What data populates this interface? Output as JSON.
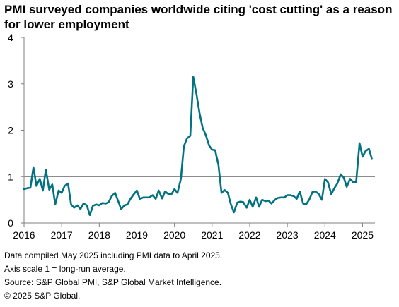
{
  "title": "PMI surveyed companies worldwide citing 'cost cutting' as a reason for lower employment",
  "notes": [
    "Data compiled May 2025 including PMI data to April 2025.",
    "Axis scale 1 = long-run average.",
    "Source: S&P Global PMI, S&P Global Market Intelligence.",
    "© 2025 S&P Global."
  ],
  "colors": {
    "line": "#007281",
    "reference": "#8c8c8c",
    "grid": "#d9d9d9",
    "axis": "#7f7f7f"
  },
  "chart_data": {
    "type": "line",
    "title": "PMI surveyed companies worldwide citing 'cost cutting' as a reason for lower employment",
    "xlabel": "",
    "ylabel": "",
    "ylim": [
      0,
      4
    ],
    "yticks": [
      0,
      1,
      2,
      3,
      4
    ],
    "xlim": [
      2016,
      2025.33
    ],
    "xticks": [
      2016,
      2017,
      2018,
      2019,
      2020,
      2021,
      2022,
      2023,
      2024,
      2025
    ],
    "reference_line": 1,
    "grid": false,
    "series": [
      {
        "x": [
          2016.0,
          2016.08,
          2016.17,
          2016.25,
          2016.33,
          2016.42,
          2016.5,
          2016.58,
          2016.67,
          2016.75,
          2016.83,
          2016.92,
          2017.0,
          2017.08,
          2017.17,
          2017.25,
          2017.33,
          2017.42,
          2017.5,
          2017.58,
          2017.67,
          2017.75,
          2017.83,
          2017.92,
          2018.0,
          2018.08,
          2018.17,
          2018.25,
          2018.33,
          2018.42,
          2018.5,
          2018.58,
          2018.67,
          2018.75,
          2018.83,
          2018.92,
          2019.0,
          2019.08,
          2019.17,
          2019.25,
          2019.33,
          2019.42,
          2019.5,
          2019.58,
          2019.67,
          2019.75,
          2019.83,
          2019.92,
          2020.0,
          2020.08,
          2020.17,
          2020.25,
          2020.33,
          2020.42,
          2020.5,
          2020.58,
          2020.67,
          2020.75,
          2020.83,
          2020.92,
          2021.0,
          2021.08,
          2021.17,
          2021.25,
          2021.33,
          2021.42,
          2021.5,
          2021.58,
          2021.67,
          2021.75,
          2021.83,
          2021.92,
          2022.0,
          2022.08,
          2022.17,
          2022.25,
          2022.33,
          2022.42,
          2022.5,
          2022.58,
          2022.67,
          2022.75,
          2022.83,
          2022.92,
          2023.0,
          2023.08,
          2023.17,
          2023.25,
          2023.33,
          2023.42,
          2023.5,
          2023.58,
          2023.67,
          2023.75,
          2023.83,
          2023.92,
          2024.0,
          2024.08,
          2024.17,
          2024.25,
          2024.33,
          2024.42,
          2024.5,
          2024.58,
          2024.67,
          2024.75,
          2024.83,
          2024.92,
          2025.0,
          2025.08,
          2025.17,
          2025.25
        ],
        "values": [
          0.73,
          0.75,
          0.76,
          1.2,
          0.8,
          0.95,
          0.7,
          1.15,
          0.72,
          0.83,
          0.4,
          0.7,
          0.65,
          0.8,
          0.85,
          0.4,
          0.33,
          0.38,
          0.3,
          0.42,
          0.38,
          0.17,
          0.37,
          0.4,
          0.38,
          0.43,
          0.42,
          0.45,
          0.58,
          0.65,
          0.48,
          0.3,
          0.38,
          0.4,
          0.52,
          0.62,
          0.7,
          0.52,
          0.55,
          0.55,
          0.55,
          0.6,
          0.52,
          0.7,
          0.53,
          0.68,
          0.63,
          0.62,
          0.73,
          0.65,
          0.95,
          1.65,
          1.82,
          1.88,
          3.15,
          2.8,
          2.35,
          2.05,
          1.9,
          1.67,
          1.58,
          1.57,
          1.25,
          0.65,
          0.71,
          0.65,
          0.4,
          0.23,
          0.44,
          0.46,
          0.45,
          0.33,
          0.5,
          0.35,
          0.55,
          0.35,
          0.5,
          0.47,
          0.48,
          0.42,
          0.5,
          0.54,
          0.55,
          0.55,
          0.6,
          0.6,
          0.58,
          0.52,
          0.68,
          0.42,
          0.4,
          0.5,
          0.67,
          0.68,
          0.63,
          0.5,
          0.95,
          0.88,
          0.62,
          0.75,
          0.85,
          1.05,
          0.98,
          0.78,
          0.95,
          0.88,
          0.88,
          1.72,
          1.43,
          1.55,
          1.6,
          1.38
        ]
      }
    ]
  }
}
